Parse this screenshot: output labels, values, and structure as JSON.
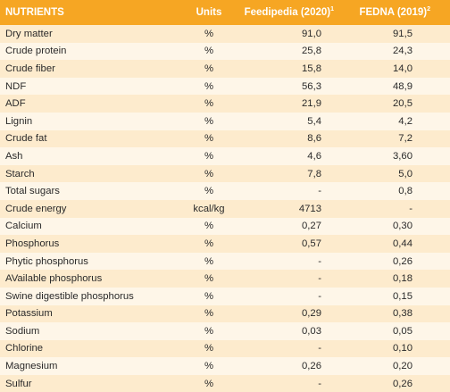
{
  "table": {
    "headers": {
      "nutrients": "NUTRIENTS",
      "units": "Units",
      "feedipedia": "Feedipedia (2020)",
      "feedipedia_sup": "1",
      "fedna": "FEDNA (2019)",
      "fedna_sup": "2"
    },
    "rows": [
      {
        "nutrient": "Dry matter",
        "unit": "%",
        "feedipedia": "91,0",
        "fedna": "91,5"
      },
      {
        "nutrient": "Crude protein",
        "unit": "%",
        "feedipedia": "25,8",
        "fedna": "24,3"
      },
      {
        "nutrient": "Crude fiber",
        "unit": "%",
        "feedipedia": "15,8",
        "fedna": "14,0"
      },
      {
        "nutrient": "NDF",
        "unit": "%",
        "feedipedia": "56,3",
        "fedna": "48,9"
      },
      {
        "nutrient": "ADF",
        "unit": "%",
        "feedipedia": "21,9",
        "fedna": "20,5"
      },
      {
        "nutrient": "Lignin",
        "unit": "%",
        "feedipedia": "5,4",
        "fedna": "4,2"
      },
      {
        "nutrient": "Crude fat",
        "unit": "%",
        "feedipedia": "8,6",
        "fedna": "7,2"
      },
      {
        "nutrient": "Ash",
        "unit": "%",
        "feedipedia": "4,6",
        "fedna": "3,60"
      },
      {
        "nutrient": "Starch",
        "unit": "%",
        "feedipedia": "7,8",
        "fedna": "5,0"
      },
      {
        "nutrient": "Total sugars",
        "unit": "%",
        "feedipedia": "-",
        "fedna": "0,8"
      },
      {
        "nutrient": "Crude energy",
        "unit": "kcal/kg",
        "feedipedia": "4713",
        "fedna": "-"
      },
      {
        "nutrient": "Calcium",
        "unit": "%",
        "feedipedia": "0,27",
        "fedna": "0,30"
      },
      {
        "nutrient": "Phosphorus",
        "unit": "%",
        "feedipedia": "0,57",
        "fedna": "0,44"
      },
      {
        "nutrient": "Phytic phosphorus",
        "unit": "%",
        "feedipedia": "-",
        "fedna": "0,26"
      },
      {
        "nutrient": "AVailable phosphorus",
        "unit": "%",
        "feedipedia": "-",
        "fedna": "0,18"
      },
      {
        "nutrient": "Swine digestible phosphorus",
        "unit": "%",
        "feedipedia": "-",
        "fedna": "0,15"
      },
      {
        "nutrient": "Potassium",
        "unit": "%",
        "feedipedia": "0,29",
        "fedna": "0,38"
      },
      {
        "nutrient": "Sodium",
        "unit": "%",
        "feedipedia": "0,03",
        "fedna": "0,05"
      },
      {
        "nutrient": "Chlorine",
        "unit": "%",
        "feedipedia": "-",
        "fedna": "0,10"
      },
      {
        "nutrient": "Magnesium",
        "unit": "%",
        "feedipedia": "0,26",
        "fedna": "0,20"
      },
      {
        "nutrient": "Sulfur",
        "unit": "%",
        "feedipedia": "-",
        "fedna": "0,26"
      }
    ]
  },
  "colors": {
    "header_bg": "#f6a623",
    "row_dark": "#fdebcd",
    "row_light": "#fef6e8"
  }
}
